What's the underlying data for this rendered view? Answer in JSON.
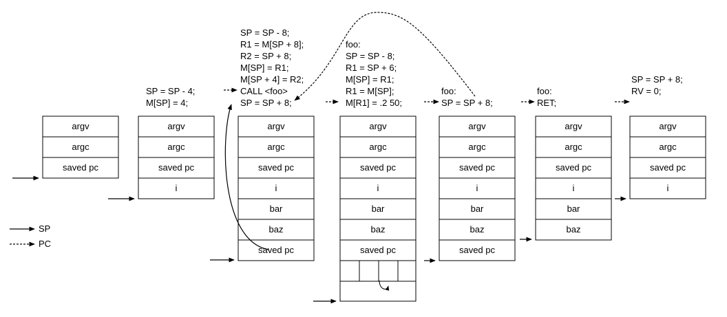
{
  "legend": {
    "sp_label": "SP",
    "pc_label": "PC"
  },
  "stacks": [
    {
      "id": "stack-1",
      "cells": [
        "argv",
        "argc",
        "saved pc"
      ],
      "code": []
    },
    {
      "id": "stack-2",
      "cells": [
        "argv",
        "argc",
        "saved pc",
        "i"
      ],
      "code": [
        "SP = SP - 4;",
        "M[SP] = 4;"
      ]
    },
    {
      "id": "stack-3",
      "cells": [
        "argv",
        "argc",
        "saved pc",
        "i",
        "bar",
        "baz",
        "saved pc"
      ],
      "code": [
        "SP = SP - 8;",
        "R1 = M[SP + 8];",
        "R2 = SP + 8;",
        "M[SP] = R1;",
        "M[SP + 4] = R2;",
        "CALL <foo>",
        "SP = SP + 8;"
      ]
    },
    {
      "id": "stack-4",
      "cells": [
        "argv",
        "argc",
        "saved pc",
        "i",
        "bar",
        "baz",
        "saved pc"
      ],
      "code": [
        "foo:",
        "SP = SP - 8;",
        "R1 = SP + 6;",
        "M[SP] = R1;",
        "R1 = M[SP];",
        "M[R1] = .2 50;"
      ]
    },
    {
      "id": "stack-5",
      "cells": [
        "argv",
        "argc",
        "saved pc",
        "i",
        "bar",
        "baz",
        "saved pc"
      ],
      "code": [
        "foo:",
        "SP = SP + 8;"
      ]
    },
    {
      "id": "stack-6",
      "cells": [
        "argv",
        "argc",
        "saved pc",
        "i",
        "bar",
        "baz"
      ],
      "code": [
        "foo:",
        "RET;"
      ]
    },
    {
      "id": "stack-7",
      "cells": [
        "argv",
        "argc",
        "saved pc",
        "i"
      ],
      "code": [
        "SP = SP + 8;",
        "RV = 0;"
      ]
    }
  ],
  "colors": {
    "stroke": "#000000",
    "fill": "#ffffff",
    "text": "#000000"
  }
}
